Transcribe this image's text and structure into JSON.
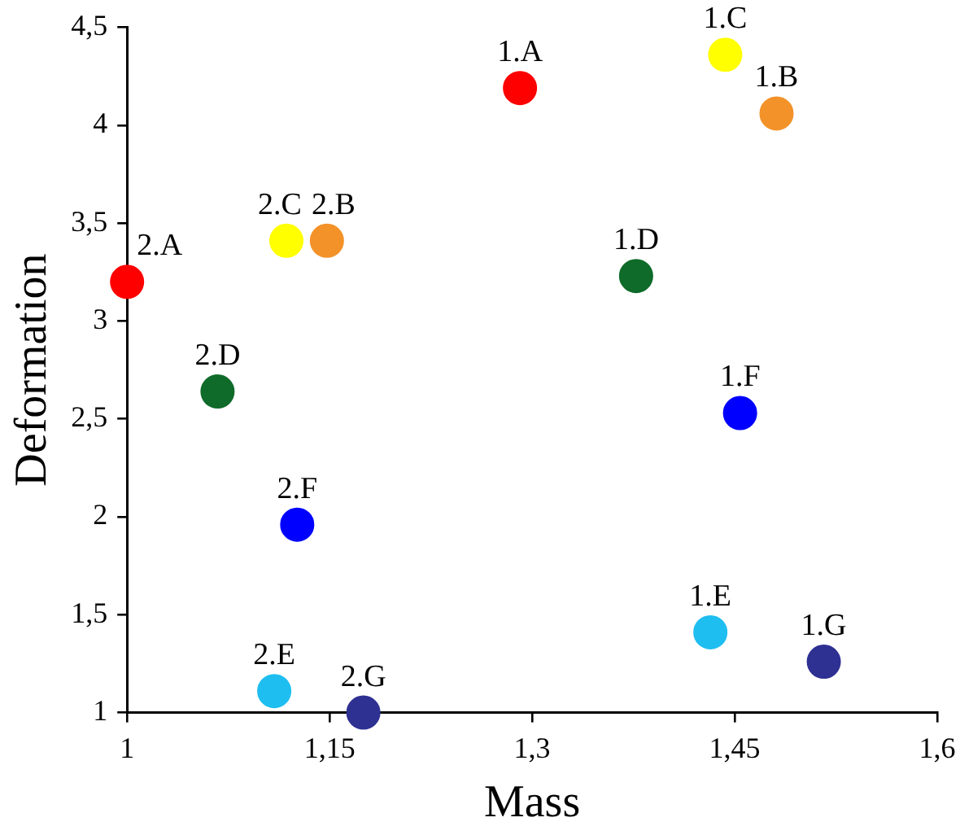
{
  "chart_data": {
    "type": "scatter",
    "xlabel": "Mass",
    "ylabel": "Deformation",
    "marker": "circle",
    "grid": false,
    "legend": false,
    "xlim": [
      1,
      1.6
    ],
    "xticks": [
      1,
      {
        "value": 1.15,
        "label": "1,15"
      },
      {
        "value": 1.3,
        "label": "1,3"
      },
      {
        "value": 1.45,
        "label": "1,45"
      },
      {
        "value": 1.6,
        "label": "1,6"
      }
    ],
    "ylim": [
      1,
      4.5
    ],
    "yticks": [
      1,
      {
        "value": 1.5,
        "label": "1,5"
      },
      2,
      {
        "value": 2.5,
        "label": "2,5"
      },
      3,
      {
        "value": 3.5,
        "label": "3,5"
      },
      4,
      {
        "value": 4.5,
        "label": "4,5"
      }
    ],
    "series": [
      {
        "name": "1.A",
        "color": "#ff0000",
        "x": [
          1.291
        ],
        "values": [
          4.19
        ]
      },
      {
        "name": "1.B",
        "color": "#f39229",
        "x": [
          1.481
        ],
        "values": [
          4.06
        ]
      },
      {
        "name": "1.C",
        "color": "#ffff00",
        "x": [
          1.443
        ],
        "values": [
          4.36
        ]
      },
      {
        "name": "1.D",
        "color": "#0f6b2a",
        "x": [
          1.377
        ],
        "values": [
          3.23
        ]
      },
      {
        "name": "1.E",
        "color": "#1ebef0",
        "x": [
          1.432
        ],
        "values": [
          1.41
        ]
      },
      {
        "name": "1.F",
        "color": "#0000ff",
        "x": [
          1.454
        ],
        "values": [
          2.53
        ]
      },
      {
        "name": "1.G",
        "color": "#2e3192",
        "x": [
          1.516
        ],
        "values": [
          1.26
        ]
      },
      {
        "name": "2.A",
        "color": "#ff0000",
        "x": [
          1.0
        ],
        "values": [
          3.2
        ]
      },
      {
        "name": "2.B",
        "color": "#f39229",
        "x": [
          1.148
        ],
        "values": [
          3.41
        ]
      },
      {
        "name": "2.C",
        "color": "#ffff00",
        "x": [
          1.118
        ],
        "values": [
          3.41
        ]
      },
      {
        "name": "2.D",
        "color": "#0f6b2a",
        "x": [
          1.067
        ],
        "values": [
          2.64
        ]
      },
      {
        "name": "2.E",
        "color": "#1ebef0",
        "x": [
          1.109
        ],
        "values": [
          1.11
        ]
      },
      {
        "name": "2.F",
        "color": "#0000ff",
        "x": [
          1.126
        ],
        "values": [
          1.96
        ]
      },
      {
        "name": "2.G",
        "color": "#2e3192",
        "x": [
          1.175
        ],
        "values": [
          1.0
        ]
      }
    ]
  }
}
